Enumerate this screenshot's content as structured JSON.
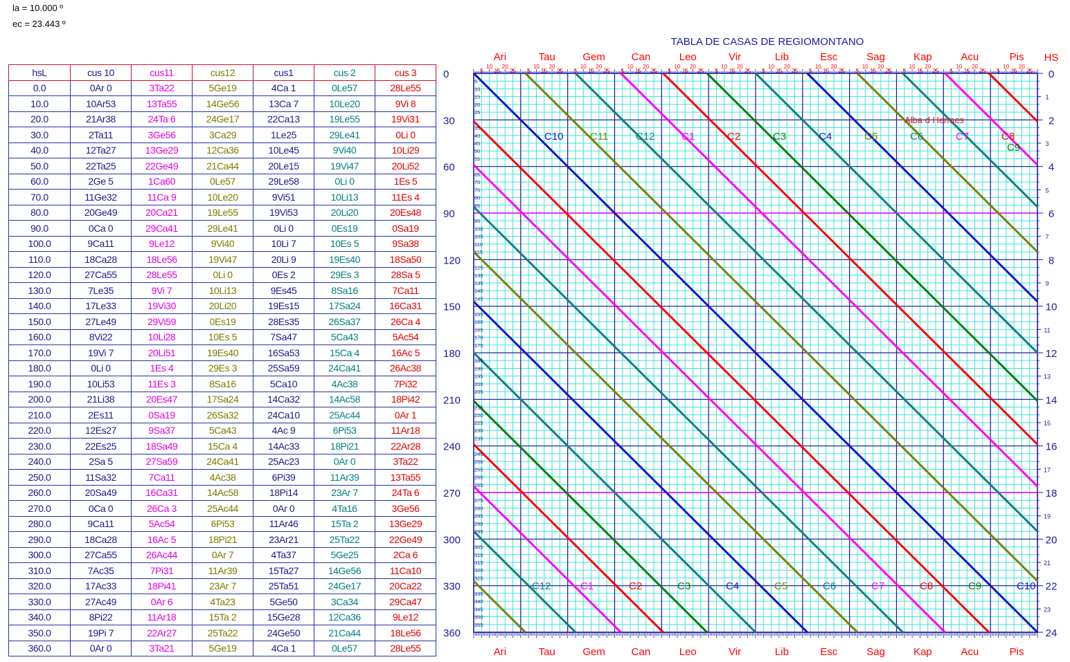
{
  "params": {
    "la": "la = 10.000 º",
    "ec": "ec = 23.443 º"
  },
  "table": {
    "headers": [
      "hsL",
      "cus 10",
      "cus11",
      "cus12",
      "cus1",
      "cus 2",
      "cus 3"
    ],
    "rows": [
      [
        "0.0",
        "0Ar 0",
        "3Ta22",
        "5Ge19",
        "4Ca 1",
        "0Le57",
        "28Le55"
      ],
      [
        "10.0",
        "10Ar53",
        "13Ta55",
        "14Ge56",
        "13Ca 7",
        "10Le20",
        "9Vi 8"
      ],
      [
        "20.0",
        "21Ar38",
        "24Ta 6",
        "24Ge17",
        "22Ca13",
        "19Le55",
        "19Vi31"
      ],
      [
        "30.0",
        "2Ta11",
        "3Ge56",
        "3Ca29",
        "1Le25",
        "29Le41",
        "0Li 0"
      ],
      [
        "40.0",
        "12Ta27",
        "13Ge29",
        "12Ca36",
        "10Le45",
        "9Vi40",
        "10Li29"
      ],
      [
        "50.0",
        "22Ta25",
        "22Ge49",
        "21Ca44",
        "20Le15",
        "19Vi47",
        "20Li52"
      ],
      [
        "60.0",
        "2Ge 5",
        "1Ca60",
        "0Le57",
        "29Le58",
        "0Li 0",
        "1Es 5"
      ],
      [
        "70.0",
        "11Ge32",
        "11Ca 9",
        "10Le20",
        "9Vi51",
        "10Li13",
        "11Es 4"
      ],
      [
        "80.0",
        "20Ge49",
        "20Ca21",
        "19Le55",
        "19Vi53",
        "20Li20",
        "20Es48"
      ],
      [
        "90.0",
        "0Ca 0",
        "29Ca41",
        "29Le41",
        "0Li 0",
        "0Es19",
        "0Sa19"
      ],
      [
        "100.0",
        "9Ca11",
        "9Le12",
        "9Vi40",
        "10Li 7",
        "10Es 5",
        "9Sa38"
      ],
      [
        "110.0",
        "18Ca28",
        "18Le56",
        "19Vi47",
        "20Li 9",
        "19Es40",
        "18Sa50"
      ],
      [
        "120.0",
        "27Ca55",
        "28Le55",
        "0Li 0",
        "0Es 2",
        "29Es 3",
        "28Sa 5"
      ],
      [
        "130.0",
        "7Le35",
        "9Vi 7",
        "10Li13",
        "9Es45",
        "8Sa16",
        "7Ca11"
      ],
      [
        "140.0",
        "17Le33",
        "19Vi30",
        "20Li20",
        "19Es15",
        "17Sa24",
        "16Ca31"
      ],
      [
        "150.0",
        "27Le49",
        "29Vi59",
        "0Es19",
        "28Es35",
        "26Sa37",
        "26Ca 4"
      ],
      [
        "160.0",
        "8Vi22",
        "10Li28",
        "10Es 5",
        "7Sa47",
        "5Ca43",
        "5Ac54"
      ],
      [
        "170.0",
        "19Vi 7",
        "20Li51",
        "19Es40",
        "16Sa53",
        "15Ca 4",
        "16Ac 5"
      ],
      [
        "180.0",
        "0Li 0",
        "1Es 4",
        "29Es 3",
        "25Sa59",
        "24Ca41",
        "26Ac38"
      ],
      [
        "190.0",
        "10Li53",
        "11Es 3",
        "8Sa16",
        "5Ca10",
        "4Ac38",
        "7Pi32"
      ],
      [
        "200.0",
        "21Li38",
        "20Es47",
        "17Sa24",
        "14Ca32",
        "14Ac58",
        "18Pi42"
      ],
      [
        "210.0",
        "2Es11",
        "0Sa19",
        "26Sa32",
        "24Ca10",
        "25Ac44",
        "0Ar 1"
      ],
      [
        "220.0",
        "12Es27",
        "9Sa37",
        "5Ca43",
        "4Ac 9",
        "6Pi53",
        "11Ar18"
      ],
      [
        "230.0",
        "22Es25",
        "18Sa49",
        "15Ca 4",
        "14Ac33",
        "18Pi21",
        "22Ar28"
      ],
      [
        "240.0",
        "2Sa 5",
        "27Sa59",
        "24Ca41",
        "25Ac23",
        "0Ar 0",
        "3Ta22"
      ],
      [
        "250.0",
        "11Sa32",
        "7Ca11",
        "4Ac38",
        "6Pi39",
        "11Ar39",
        "13Ta55"
      ],
      [
        "260.0",
        "20Sa49",
        "16Ca31",
        "14Ac58",
        "18Pi14",
        "23Ar 7",
        "24Ta 6"
      ],
      [
        "270.0",
        "0Ca 0",
        "26Ca 3",
        "25Ac44",
        "0Ar 0",
        "4Ta16",
        "3Ge56"
      ],
      [
        "280.0",
        "9Ca11",
        "5Ac54",
        "6Pi53",
        "11Ar46",
        "15Ta 2",
        "13Ge29"
      ],
      [
        "290.0",
        "18Ca28",
        "16Ac 5",
        "18Pi21",
        "23Ar21",
        "25Ta22",
        "22Ge49"
      ],
      [
        "300.0",
        "27Ca55",
        "26Ac44",
        "0Ar 7",
        "4Ta37",
        "5Ge25",
        "2Ca 6"
      ],
      [
        "310.0",
        "7Ac35",
        "7Pi31",
        "11Ar39",
        "15Ta27",
        "14Ge56",
        "11Ca10"
      ],
      [
        "320.0",
        "17Ac33",
        "18Pi41",
        "23Ar 7",
        "25Ta51",
        "24Ge17",
        "20Ca22"
      ],
      [
        "330.0",
        "27Ac49",
        "0Ar 6",
        "4Ta23",
        "5Ge50",
        "3Ca34",
        "29Ca47"
      ],
      [
        "340.0",
        "8Pi22",
        "11Ar18",
        "15Ta 2",
        "15Ge28",
        "12Ca36",
        "9Le12"
      ],
      [
        "350.0",
        "19Pi 7",
        "22Ar27",
        "25Ta22",
        "24Ge50",
        "21Ca44",
        "18Le56"
      ],
      [
        "360.0",
        "0Ar 0",
        "3Ta21",
        "5Ge19",
        "4Ca 1",
        "0Le57",
        "28Le55"
      ]
    ]
  },
  "chart_data": {
    "type": "line",
    "title": "TABLA DE CASAS DE REGIOMONTANO",
    "signs": [
      "Ari",
      "Tau",
      "Gem",
      "Can",
      "Leo",
      "Vir",
      "Lib",
      "Esc",
      "Sag",
      "Kap",
      "Acu",
      "Pis"
    ],
    "sign_sublabels": [
      "5",
      "10",
      "15",
      "20",
      "25"
    ],
    "xlim": [
      0,
      360
    ],
    "ylim": [
      0,
      360
    ],
    "left_ticks": [
      0,
      30,
      60,
      90,
      120,
      150,
      180,
      210,
      240,
      270,
      300,
      330,
      360
    ],
    "left_minor_ticks": [
      5,
      10,
      15,
      20,
      25,
      35,
      40,
      45,
      50,
      55,
      65,
      70,
      75,
      80,
      85,
      95,
      100,
      105,
      110,
      115,
      125,
      130,
      135,
      140,
      145,
      155,
      160,
      165,
      170,
      175,
      185,
      190,
      195,
      200,
      205,
      215,
      220,
      225,
      230,
      235,
      245,
      250,
      255,
      260,
      265,
      275,
      280,
      285,
      290,
      295,
      305,
      310,
      315,
      320,
      325,
      335,
      340,
      345,
      350,
      355
    ],
    "right_axis_label": "HS",
    "right_major_ticks": [
      "0",
      "2",
      "4",
      "6",
      "8",
      "10",
      "12",
      "14",
      "16",
      "18",
      "20",
      "22",
      "24"
    ],
    "right_minor_ticks": [
      "1",
      "3",
      "5",
      "7",
      "9",
      "11",
      "13",
      "15",
      "17",
      "19",
      "21",
      "23"
    ],
    "cusp_labels_top": [
      "C10",
      "C11",
      "C12",
      "C1",
      "C2",
      "C3",
      "C4",
      "C5",
      "C6",
      "C7",
      "C8",
      "C9"
    ],
    "cusp_labels_bottom": [
      "C12",
      "C1",
      "C2",
      "C3",
      "C4",
      "C5",
      "C6",
      "C7",
      "C8",
      "C9",
      "C10"
    ],
    "annotation": "Alba d Hermes",
    "series": [
      {
        "x0": 0,
        "color": "#1515c8"
      },
      {
        "x0": 33,
        "color": "#7f7f00"
      },
      {
        "x0": 65,
        "color": "#0f8080"
      },
      {
        "x0": 94,
        "color": "#ff00ff"
      },
      {
        "x0": 121,
        "color": "#ff0000"
      },
      {
        "x0": 149,
        "color": "#008000"
      },
      {
        "x0": 180,
        "color": "#0f8080"
      },
      {
        "x0": 213,
        "color": "#1515c8"
      },
      {
        "x0": 245,
        "color": "#7f7f00"
      },
      {
        "x0": 274,
        "color": "#0f8080"
      },
      {
        "x0": 301,
        "color": "#ff00ff"
      },
      {
        "x0": 329,
        "color": "#ff0000"
      }
    ],
    "highlight_rows": [
      90,
      270
    ],
    "colors": {
      "grid_fine": "#40e0e0",
      "grid_major": "#1a1aa0",
      "sign_label": "#ff0000",
      "tick_label": "#1a1aa0",
      "title": "#1a1aa0",
      "highlight": "#ff00ff"
    }
  }
}
